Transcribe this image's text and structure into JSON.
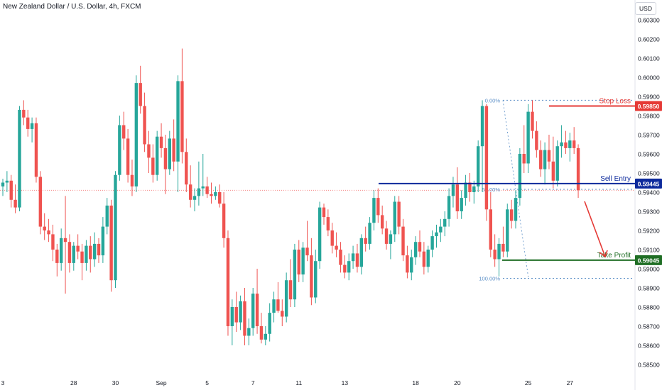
{
  "symbol_title": "New Zealand Dollar / U.S. Dollar, 4h, FXCM",
  "currency": "USD",
  "colors": {
    "up": "#26a69a",
    "down": "#ef5350",
    "stop": "#e53935",
    "entry": "#0d2a9c",
    "profit": "#1f6e24",
    "fib": "#5b8fc7"
  },
  "chart_data": {
    "type": "candlestick",
    "title": "New Zealand Dollar / U.S. Dollar, 4h, FXCM",
    "ylim": [
      0.585,
      0.6035
    ],
    "y_ticks": [
      "0.60300",
      "0.60200",
      "0.60100",
      "0.60000",
      "0.59900",
      "0.59800",
      "0.59700",
      "0.59600",
      "0.59500",
      "0.59400",
      "0.59300",
      "0.59200",
      "0.59100",
      "0.59000",
      "0.58900",
      "0.58800",
      "0.58700",
      "0.58600",
      "0.58500"
    ],
    "x_ticks": [
      {
        "label": "3",
        "bar": 0
      },
      {
        "label": "28",
        "bar": 17
      },
      {
        "label": "30",
        "bar": 27
      },
      {
        "label": "Sep",
        "bar": 38
      },
      {
        "label": "5",
        "bar": 49
      },
      {
        "label": "7",
        "bar": 60
      },
      {
        "label": "11",
        "bar": 71
      },
      {
        "label": "13",
        "bar": 82
      },
      {
        "label": "18",
        "bar": 99
      },
      {
        "label": "20",
        "bar": 109
      },
      {
        "label": "25",
        "bar": 126
      },
      {
        "label": "27",
        "bar": 136
      }
    ],
    "candles": [
      [
        0.5943,
        0.5947,
        0.5938,
        0.5945
      ],
      [
        0.5945,
        0.5951,
        0.594,
        0.5946
      ],
      [
        0.5946,
        0.5949,
        0.5932,
        0.5936
      ],
      [
        0.5936,
        0.5944,
        0.5929,
        0.5932
      ],
      [
        0.5932,
        0.5985,
        0.593,
        0.5983
      ],
      [
        0.5983,
        0.5988,
        0.5975,
        0.5979
      ],
      [
        0.5979,
        0.5983,
        0.5969,
        0.5973
      ],
      [
        0.5973,
        0.5979,
        0.5966,
        0.5976
      ],
      [
        0.5976,
        0.5979,
        0.5945,
        0.5948
      ],
      [
        0.5948,
        0.5951,
        0.5918,
        0.5922
      ],
      [
        0.5922,
        0.5929,
        0.5915,
        0.592
      ],
      [
        0.592,
        0.5926,
        0.5914,
        0.5918
      ],
      [
        0.5918,
        0.5923,
        0.5904,
        0.591
      ],
      [
        0.591,
        0.5913,
        0.5896,
        0.5903
      ],
      [
        0.5903,
        0.5921,
        0.5899,
        0.5916
      ],
      [
        0.5916,
        0.5938,
        0.5887,
        0.5914
      ],
      [
        0.5914,
        0.5918,
        0.5898,
        0.5903
      ],
      [
        0.5903,
        0.5914,
        0.5899,
        0.5912
      ],
      [
        0.5912,
        0.5918,
        0.5905,
        0.5909
      ],
      [
        0.5909,
        0.5913,
        0.5894,
        0.5903
      ],
      [
        0.5903,
        0.5915,
        0.5899,
        0.5912
      ],
      [
        0.5912,
        0.5917,
        0.5898,
        0.5905
      ],
      [
        0.5905,
        0.5919,
        0.5901,
        0.5913
      ],
      [
        0.5913,
        0.5916,
        0.5903,
        0.5907
      ],
      [
        0.5907,
        0.5927,
        0.5903,
        0.5922
      ],
      [
        0.5922,
        0.5937,
        0.5918,
        0.5933
      ],
      [
        0.5933,
        0.5936,
        0.5888,
        0.5894
      ],
      [
        0.5894,
        0.5951,
        0.589,
        0.5949
      ],
      [
        0.5949,
        0.598,
        0.5946,
        0.5975
      ],
      [
        0.5975,
        0.5982,
        0.5962,
        0.5968
      ],
      [
        0.5968,
        0.5973,
        0.5945,
        0.5949
      ],
      [
        0.5949,
        0.5957,
        0.5938,
        0.5943
      ],
      [
        0.5943,
        0.6001,
        0.594,
        0.5997
      ],
      [
        0.5997,
        0.6006,
        0.5981,
        0.5985
      ],
      [
        0.5985,
        0.5992,
        0.5961,
        0.5965
      ],
      [
        0.5965,
        0.5972,
        0.595,
        0.5958
      ],
      [
        0.5958,
        0.5965,
        0.5945,
        0.5949
      ],
      [
        0.5949,
        0.5972,
        0.5946,
        0.5969
      ],
      [
        0.5969,
        0.5976,
        0.5958,
        0.5963
      ],
      [
        0.5963,
        0.597,
        0.5939,
        0.5952
      ],
      [
        0.5952,
        0.5972,
        0.5949,
        0.5968
      ],
      [
        0.5968,
        0.5978,
        0.5951,
        0.5956
      ],
      [
        0.5956,
        0.6001,
        0.594,
        0.5998
      ],
      [
        0.5998,
        0.6015,
        0.5955,
        0.5961
      ],
      [
        0.5961,
        0.5968,
        0.594,
        0.5944
      ],
      [
        0.5944,
        0.5954,
        0.5932,
        0.5936
      ],
      [
        0.5936,
        0.5942,
        0.593,
        0.5938
      ],
      [
        0.5938,
        0.5956,
        0.5933,
        0.5942
      ],
      [
        0.5942,
        0.596,
        0.5938,
        0.5943
      ],
      [
        0.5943,
        0.5948,
        0.5937,
        0.5939
      ],
      [
        0.5939,
        0.5945,
        0.5934,
        0.5938
      ],
      [
        0.5938,
        0.5943,
        0.5936,
        0.594
      ],
      [
        0.594,
        0.5944,
        0.5932,
        0.5934
      ],
      [
        0.5934,
        0.594,
        0.5911,
        0.5916
      ],
      [
        0.5916,
        0.592,
        0.5865,
        0.587
      ],
      [
        0.587,
        0.5884,
        0.586,
        0.588
      ],
      [
        0.588,
        0.5888,
        0.5867,
        0.5872
      ],
      [
        0.5872,
        0.5886,
        0.5868,
        0.5883
      ],
      [
        0.5883,
        0.589,
        0.586,
        0.5865
      ],
      [
        0.5865,
        0.5874,
        0.586,
        0.5869
      ],
      [
        0.5869,
        0.589,
        0.5865,
        0.5887
      ],
      [
        0.5887,
        0.59,
        0.5866,
        0.587
      ],
      [
        0.587,
        0.5877,
        0.5861,
        0.5863
      ],
      [
        0.5863,
        0.587,
        0.586,
        0.5866
      ],
      [
        0.5866,
        0.5882,
        0.5862,
        0.5877
      ],
      [
        0.5877,
        0.5888,
        0.5872,
        0.5884
      ],
      [
        0.5884,
        0.5893,
        0.5877,
        0.5878
      ],
      [
        0.5878,
        0.5884,
        0.587,
        0.5875
      ],
      [
        0.5875,
        0.5898,
        0.5872,
        0.5894
      ],
      [
        0.5894,
        0.5905,
        0.588,
        0.5884
      ],
      [
        0.5884,
        0.5913,
        0.588,
        0.591
      ],
      [
        0.591,
        0.5915,
        0.5893,
        0.5897
      ],
      [
        0.5897,
        0.5914,
        0.5893,
        0.5911
      ],
      [
        0.5911,
        0.5925,
        0.5904,
        0.5907
      ],
      [
        0.5907,
        0.5916,
        0.5881,
        0.5885
      ],
      [
        0.5885,
        0.591,
        0.5882,
        0.5904
      ],
      [
        0.5904,
        0.5935,
        0.59,
        0.5932
      ],
      [
        0.5932,
        0.5934,
        0.5923,
        0.5927
      ],
      [
        0.5927,
        0.5931,
        0.5917,
        0.592
      ],
      [
        0.592,
        0.5924,
        0.5908,
        0.5912
      ],
      [
        0.5912,
        0.5919,
        0.5906,
        0.591
      ],
      [
        0.591,
        0.5914,
        0.5898,
        0.5902
      ],
      [
        0.5902,
        0.5907,
        0.5895,
        0.5898
      ],
      [
        0.5898,
        0.5908,
        0.5894,
        0.5904
      ],
      [
        0.5904,
        0.5912,
        0.59,
        0.5908
      ],
      [
        0.5908,
        0.5913,
        0.5898,
        0.5901
      ],
      [
        0.5901,
        0.5918,
        0.5897,
        0.5916
      ],
      [
        0.5916,
        0.5922,
        0.5909,
        0.5913
      ],
      [
        0.5913,
        0.5927,
        0.591,
        0.5924
      ],
      [
        0.5924,
        0.5941,
        0.592,
        0.5937
      ],
      [
        0.5937,
        0.5942,
        0.5924,
        0.5928
      ],
      [
        0.5928,
        0.5933,
        0.5918,
        0.5921
      ],
      [
        0.5921,
        0.5925,
        0.591,
        0.5913
      ],
      [
        0.5913,
        0.592,
        0.5905,
        0.5918
      ],
      [
        0.5918,
        0.5938,
        0.5914,
        0.5935
      ],
      [
        0.5935,
        0.5938,
        0.5918,
        0.5922
      ],
      [
        0.5922,
        0.5926,
        0.5904,
        0.5907
      ],
      [
        0.5907,
        0.5912,
        0.5895,
        0.5898
      ],
      [
        0.5898,
        0.591,
        0.5894,
        0.5906
      ],
      [
        0.5906,
        0.5917,
        0.5902,
        0.5914
      ],
      [
        0.5914,
        0.592,
        0.5906,
        0.5909
      ],
      [
        0.5909,
        0.5914,
        0.5897,
        0.5901
      ],
      [
        0.5901,
        0.5912,
        0.5898,
        0.591
      ],
      [
        0.591,
        0.592,
        0.5906,
        0.5917
      ],
      [
        0.5917,
        0.5923,
        0.5911,
        0.5919
      ],
      [
        0.5919,
        0.5926,
        0.5914,
        0.5922
      ],
      [
        0.5922,
        0.593,
        0.5917,
        0.5926
      ],
      [
        0.5926,
        0.5942,
        0.5922,
        0.5938
      ],
      [
        0.5938,
        0.5948,
        0.5932,
        0.5944
      ],
      [
        0.5944,
        0.5953,
        0.5926,
        0.593
      ],
      [
        0.593,
        0.5941,
        0.5926,
        0.5937
      ],
      [
        0.5937,
        0.5949,
        0.5933,
        0.5945
      ],
      [
        0.5945,
        0.595,
        0.5935,
        0.594
      ],
      [
        0.594,
        0.5946,
        0.5934,
        0.5943
      ],
      [
        0.5943,
        0.5967,
        0.594,
        0.5964
      ],
      [
        0.5964,
        0.5988,
        0.594,
        0.5985
      ],
      [
        0.5985,
        0.5986,
        0.5925,
        0.5931
      ],
      [
        0.5931,
        0.594,
        0.5906,
        0.591
      ],
      [
        0.591,
        0.5918,
        0.5901,
        0.5905
      ],
      [
        0.5905,
        0.5916,
        0.5896,
        0.5913
      ],
      [
        0.5913,
        0.5922,
        0.5906,
        0.5909
      ],
      [
        0.5909,
        0.5934,
        0.5906,
        0.5931
      ],
      [
        0.5931,
        0.5936,
        0.5921,
        0.5925
      ],
      [
        0.5925,
        0.5941,
        0.5921,
        0.5937
      ],
      [
        0.5937,
        0.5963,
        0.5933,
        0.596
      ],
      [
        0.596,
        0.5975,
        0.595,
        0.5955
      ],
      [
        0.5955,
        0.5986,
        0.595,
        0.5982
      ],
      [
        0.5982,
        0.5988,
        0.5968,
        0.5972
      ],
      [
        0.5972,
        0.5977,
        0.5958,
        0.5962
      ],
      [
        0.5962,
        0.5967,
        0.5948,
        0.5952
      ],
      [
        0.5952,
        0.5966,
        0.5944,
        0.5962
      ],
      [
        0.5962,
        0.597,
        0.5952,
        0.5956
      ],
      [
        0.5956,
        0.5969,
        0.5942,
        0.5946
      ],
      [
        0.5946,
        0.5967,
        0.5943,
        0.5964
      ],
      [
        0.5964,
        0.5975,
        0.5958,
        0.5966
      ],
      [
        0.5966,
        0.5972,
        0.596,
        0.5963
      ],
      [
        0.5963,
        0.5971,
        0.5956,
        0.5967
      ],
      [
        0.5967,
        0.5974,
        0.596,
        0.5963
      ],
      [
        0.5963,
        0.5965,
        0.5937,
        0.5941
      ]
    ],
    "levels": [
      {
        "label": "Stop Loss",
        "price_label": "0.59850",
        "value": 0.5985
      },
      {
        "label": "Sell Entry",
        "price_label": "0.59445",
        "value": 0.59445
      },
      {
        "label": "Take Profit",
        "price_label": "0.59045",
        "value": 0.59045
      }
    ],
    "fib_labels": [
      {
        "label": "0.00%",
        "value": 0.5988
      },
      {
        "label": "50.00%",
        "value": 0.59415
      },
      {
        "label": "100.00%",
        "value": 0.5895
      }
    ],
    "last_price": 0.5941
  }
}
